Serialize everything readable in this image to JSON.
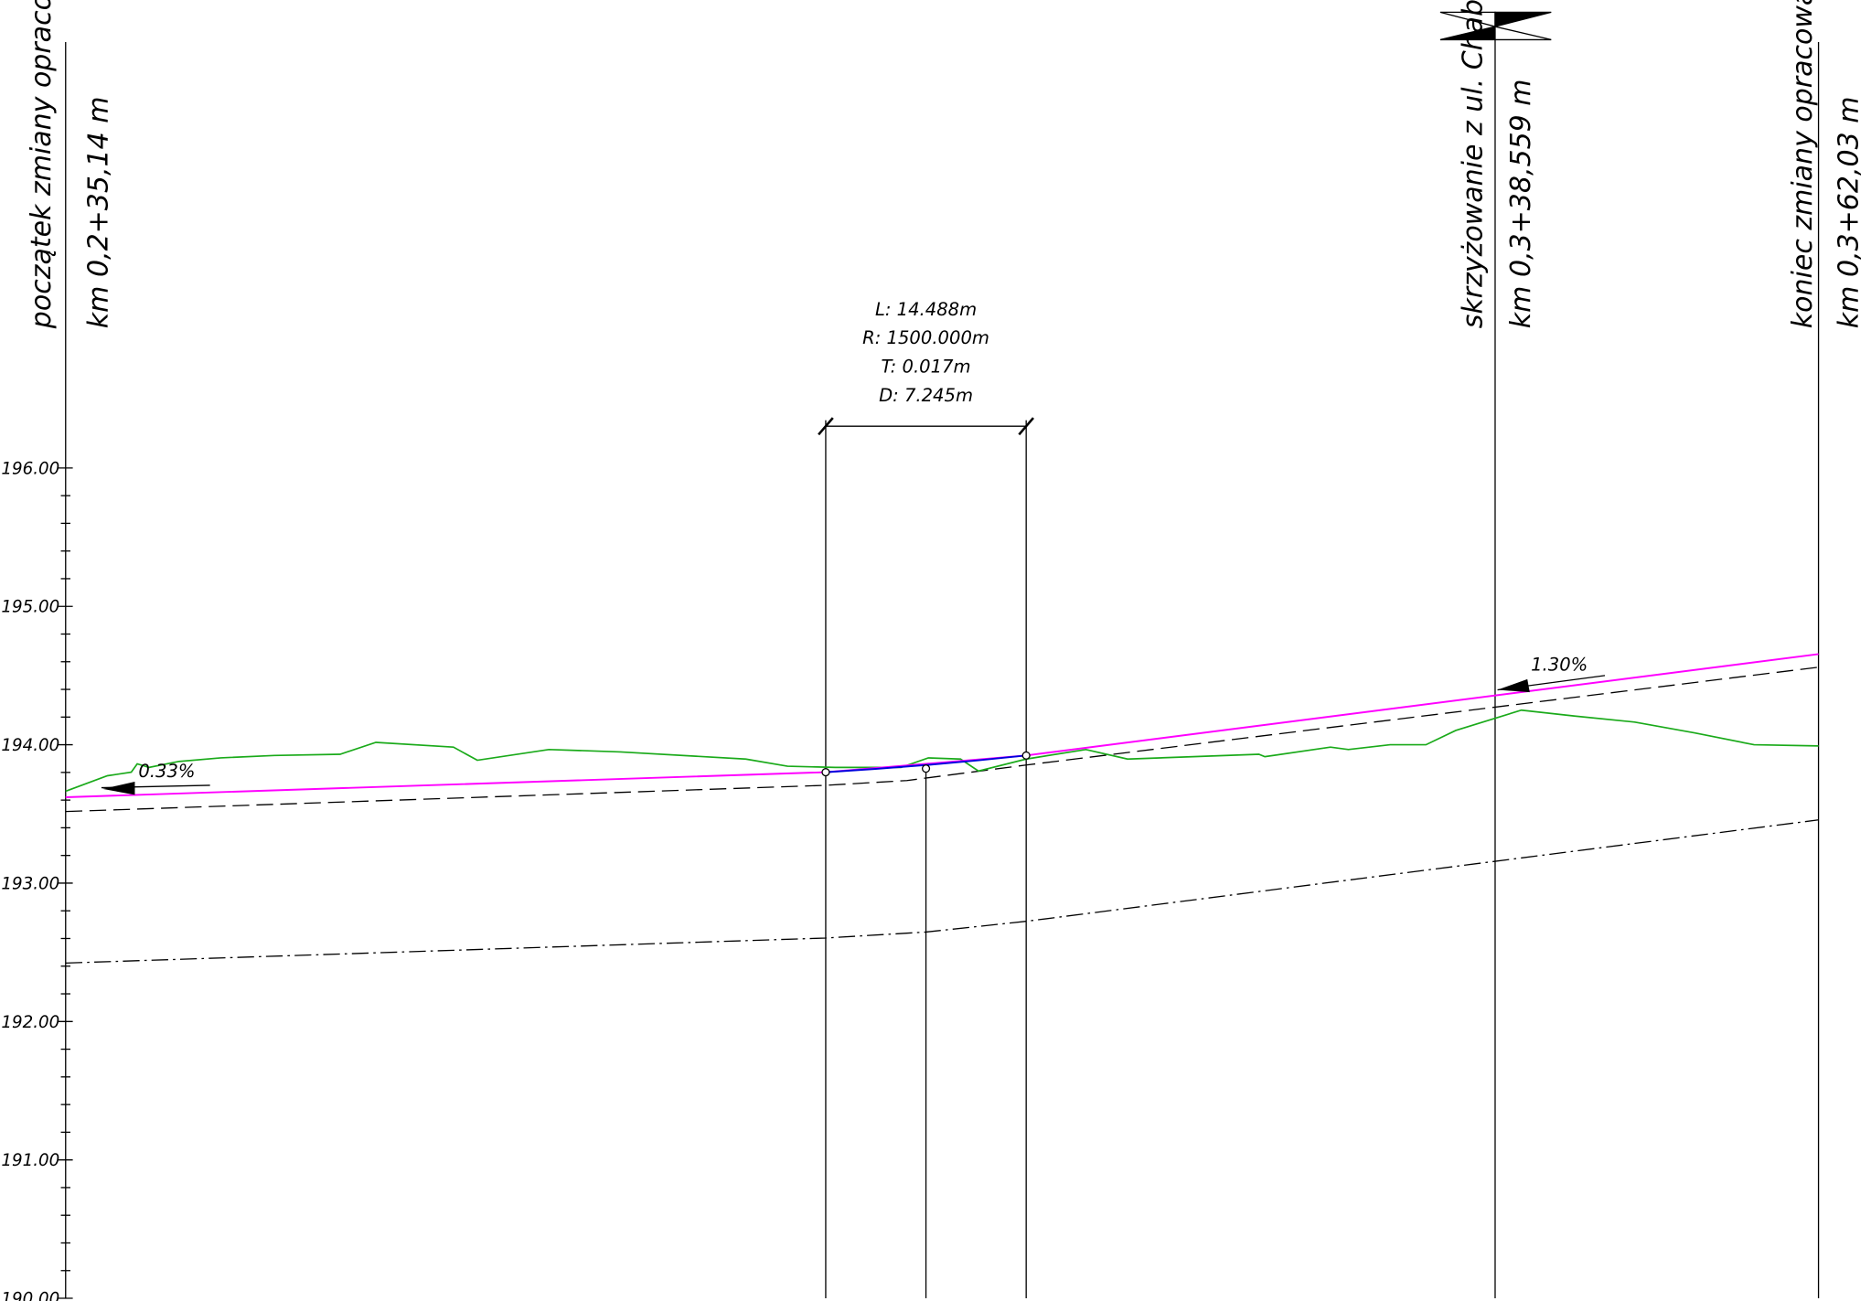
{
  "stations": [
    {
      "name": "początek zmiany opracowania",
      "km": "km 0,2+35,14 m"
    },
    {
      "name": "skrzyżowanie z ul. Chabrów",
      "km": "km 0,3+38,559 m"
    },
    {
      "name": "koniec zmiany opracowania",
      "km": "km 0,3+62,03 m"
    }
  ],
  "curve": [
    "L: 14.488m",
    "R: 1500.000m",
    "T: 0.017m",
    "D: 7.245m"
  ],
  "slopes": [
    "0.33%",
    "1.30%"
  ],
  "elevation_labels": [
    "196.00",
    "195.00",
    "194.00",
    "193.00",
    "192.00",
    "191.00",
    "190.00"
  ]
}
